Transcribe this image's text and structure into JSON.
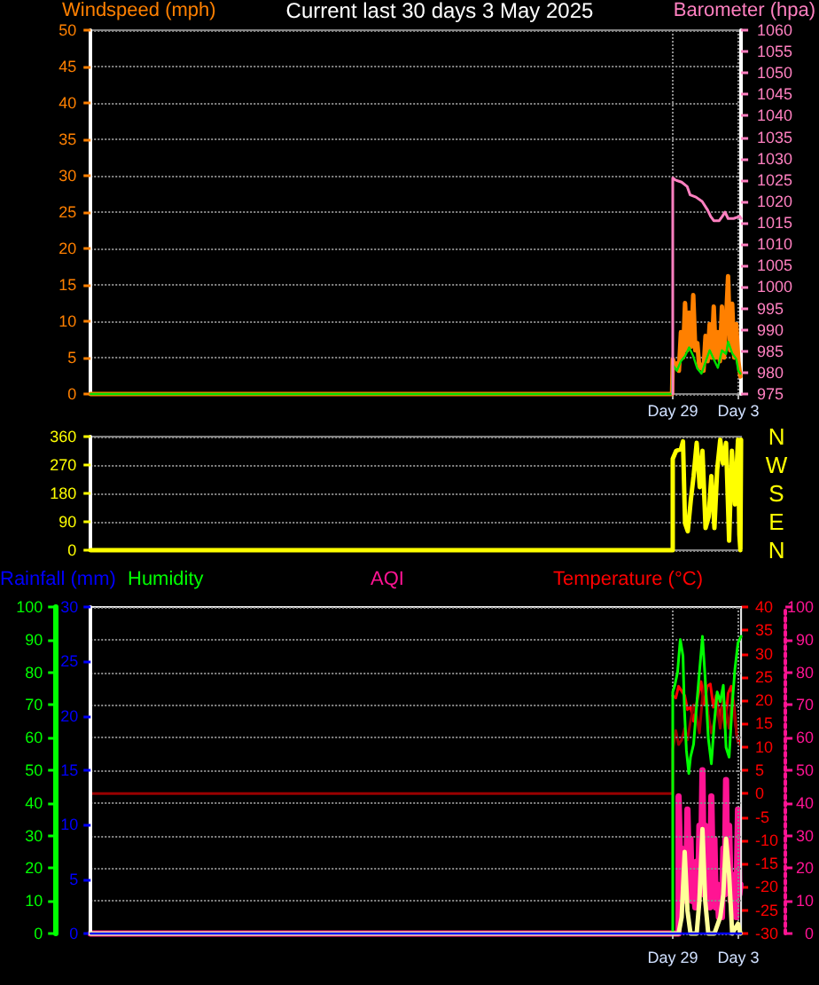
{
  "chart_data": [
    {
      "type": "line",
      "title": "Current last 30 days 3 May 2025",
      "ylabel": "Windspeed (mph)",
      "y2label": "Barometer (hpa)",
      "xlim": [
        "2025-03-24T12:00",
        "2025-05-03T04:00"
      ],
      "xticks": [
        {
          "value": "2025-04-29T00:00",
          "label": "Day 29"
        },
        {
          "value": "2025-05-03T00:00",
          "label": "Day 3"
        }
      ],
      "ylim": [
        0,
        50
      ],
      "yticks": [
        0,
        5,
        10,
        15,
        20,
        25,
        30,
        35,
        40,
        45,
        50
      ],
      "y2lim": [
        975,
        1060
      ],
      "y2ticks": [
        975,
        980,
        985,
        990,
        995,
        1000,
        1005,
        1010,
        1015,
        1020,
        1025,
        1030,
        1035,
        1040,
        1045,
        1050,
        1055,
        1060
      ],
      "grid": true,
      "marker": "none",
      "series": [
        {
          "color": "#ff8000",
          "x": [
            "2025-03-24T12:00",
            "2025-04-28T23:00",
            "2025-04-29T00:00",
            "2025-04-29T03:00",
            "2025-04-29T06:00",
            "2025-04-29T09:00",
            "2025-04-29T12:00",
            "2025-04-29T15:00",
            "2025-04-29T18:00",
            "2025-04-29T21:00",
            "2025-04-30T00:00",
            "2025-04-30T03:00",
            "2025-04-30T06:00",
            "2025-04-30T09:00",
            "2025-04-30T12:00",
            "2025-04-30T15:00",
            "2025-04-30T18:00",
            "2025-04-30T21:00",
            "2025-05-01T00:00",
            "2025-05-01T03:00",
            "2025-05-01T06:00",
            "2025-05-01T09:00",
            "2025-05-01T12:00",
            "2025-05-01T15:00",
            "2025-05-01T18:00",
            "2025-05-01T21:00",
            "2025-05-02T00:00",
            "2025-05-02T03:00",
            "2025-05-02T06:00",
            "2025-05-02T09:00",
            "2025-05-02T12:00",
            "2025-05-02T15:00",
            "2025-05-02T18:00",
            "2025-05-02T21:00",
            "2025-05-03T00:00",
            "2025-05-03T03:00"
          ],
          "values": [
            0,
            0,
            4.8,
            3.8,
            4.2,
            3.2,
            8.5,
            5,
            12.5,
            6,
            11.2,
            6.5,
            13.6,
            6,
            7,
            3.5,
            4,
            3.2,
            8,
            4.5,
            9.6,
            5,
            12,
            5,
            8.5,
            4.5,
            12,
            5,
            10,
            16.2,
            6,
            12.4,
            5,
            9.6,
            4.5,
            2.4
          ]
        },
        {
          "color": "#00e000",
          "x": [
            "2025-03-24T12:00",
            "2025-04-28T23:00",
            "2025-04-29T00:00",
            "2025-04-29T06:00",
            "2025-04-29T12:00",
            "2025-04-29T18:00",
            "2025-04-30T00:00",
            "2025-04-30T06:00",
            "2025-04-30T12:00",
            "2025-04-30T18:00",
            "2025-05-01T00:00",
            "2025-05-01T06:00",
            "2025-05-01T12:00",
            "2025-05-01T18:00",
            "2025-05-02T00:00",
            "2025-05-02T06:00",
            "2025-05-02T09:00",
            "2025-05-02T15:00",
            "2025-05-02T21:00",
            "2025-05-03T00:00",
            "2025-05-03T03:00"
          ],
          "values": [
            0,
            0,
            4,
            3.2,
            4.5,
            5.2,
            6.4,
            5.2,
            3.5,
            2.8,
            4.4,
            6,
            4.8,
            3.6,
            6,
            5.5,
            7.2,
            5.6,
            4.8,
            3.2,
            2.8
          ]
        },
        {
          "color": "#ff80c0",
          "axis": "y2",
          "x": [
            "2025-04-29T00:00",
            "2025-04-29T00:00",
            "2025-04-29T04:00",
            "2025-04-29T13:00",
            "2025-04-29T21:00",
            "2025-04-30T01:30",
            "2025-04-30T10:00",
            "2025-04-30T19:00",
            "2025-05-01T03:00",
            "2025-05-01T07:30",
            "2025-05-01T12:00",
            "2025-05-01T20:00",
            "2025-05-02T00:30",
            "2025-05-02T04:30",
            "2025-05-02T09:00",
            "2025-05-02T17:00",
            "2025-05-03T02:00",
            "2025-05-03T04:00"
          ],
          "values": [
            975,
            1025.5,
            1025,
            1024.5,
            1023.5,
            1021.5,
            1021,
            1020,
            1018,
            1016.5,
            1015.5,
            1015.5,
            1016.5,
            1017.5,
            1016,
            1016,
            1016.5,
            1016
          ]
        }
      ]
    },
    {
      "type": "line",
      "xlim": [
        "2025-03-24T12:00",
        "2025-05-03T04:00"
      ],
      "ylim": [
        0,
        360
      ],
      "yticks": [
        0,
        90,
        180,
        270,
        360
      ],
      "annotations": [
        "N",
        "W",
        "S",
        "E",
        "N"
      ],
      "grid": "y",
      "tick_labels": "y",
      "marker": "none",
      "series": [
        {
          "color": "#ffff00",
          "x": [
            "2025-03-24T12:00",
            "2025-04-29T00:00",
            "2025-04-29T00:00",
            "2025-04-29T05:00",
            "2025-04-29T12:00",
            "2025-04-29T15:00",
            "2025-04-29T18:00",
            "2025-04-29T22:00",
            "2025-04-30T02:30",
            "2025-04-30T06:30",
            "2025-04-30T11:00",
            "2025-04-30T15:30",
            "2025-04-30T19:30",
            "2025-05-01T00:00",
            "2025-05-01T04:30",
            "2025-05-01T08:30",
            "2025-05-01T13:00",
            "2025-05-01T17:00",
            "2025-05-01T21:30",
            "2025-05-02T01:30",
            "2025-05-02T06:00",
            "2025-05-02T10:30",
            "2025-05-02T14:30",
            "2025-05-02T19:00",
            "2025-05-02T23:30",
            "2025-05-03T01:30",
            "2025-05-03T03:00",
            "2025-05-03T04:00"
          ],
          "values": [
            0,
            0,
            290,
            315,
            320,
            345,
            85,
            60,
            160,
            235,
            340,
            200,
            315,
            70,
            105,
            235,
            70,
            255,
            350,
            275,
            340,
            30,
            315,
            145,
            350,
            50,
            0,
            350
          ]
        }
      ]
    },
    {
      "type": "line",
      "xlim": [
        "2025-03-24T12:00",
        "2025-05-03T04:00"
      ],
      "xticks": [
        {
          "value": "2025-04-29T00:00",
          "label": "Day 29"
        },
        {
          "value": "2025-05-03T00:00",
          "label": "Day 3"
        }
      ],
      "ylim": [
        0,
        100
      ],
      "yticks": [
        0,
        10,
        20,
        30,
        40,
        50,
        60,
        70,
        80,
        90,
        100
      ],
      "y2lim": [
        0,
        30
      ],
      "y2ticks": [
        0,
        5,
        10,
        15,
        20,
        25,
        30
      ],
      "grid": true,
      "marker": "none",
      "legend": "top left",
      "series": [
        {
          "name": "Humidity",
          "color": "#00ff00",
          "x": [
            "2025-04-29T00:00",
            "2025-04-29T00:00",
            "2025-04-29T03:00",
            "2025-04-29T07:00",
            "2025-04-29T11:00",
            "2025-04-29T15:00",
            "2025-04-29T17:00",
            "2025-04-29T20:00",
            "2025-04-29T23:30",
            "2025-04-30T02:00",
            "2025-04-30T06:30",
            "2025-04-30T11:00",
            "2025-04-30T15:00",
            "2025-04-30T19:30",
            "2025-04-30T23:30",
            "2025-05-01T04:00",
            "2025-05-01T08:30",
            "2025-05-01T13:00",
            "2025-05-01T17:00",
            "2025-05-01T21:30",
            "2025-05-02T02:00",
            "2025-05-02T06:00",
            "2025-05-02T10:30",
            "2025-05-02T15:00",
            "2025-05-02T19:00",
            "2025-05-02T23:30",
            "2025-05-03T04:00"
          ],
          "values": [
            0,
            74,
            76,
            80,
            90,
            85,
            69,
            56,
            49,
            54,
            58,
            70,
            80,
            91,
            78,
            60,
            52,
            65,
            74,
            71,
            76,
            57,
            54,
            70,
            81,
            89,
            91
          ]
        },
        {
          "color": "#ffff99",
          "x": [
            "2025-03-24T12:00",
            "2025-04-29T08:30",
            "2025-04-29T13:00",
            "2025-04-29T17:30",
            "2025-04-29T21:30",
            "2025-04-30T02:00",
            "2025-04-30T11:00",
            "2025-04-30T15:00",
            "2025-04-30T19:30",
            "2025-04-30T23:30",
            "2025-05-01T04:00",
            "2025-05-01T13:00",
            "2025-05-01T21:30",
            "2025-05-02T02:00",
            "2025-05-02T06:00",
            "2025-05-02T10:30",
            "2025-05-02T15:00",
            "2025-05-02T23:30",
            "2025-05-03T03:00"
          ],
          "values": [
            0,
            0,
            5,
            25,
            7,
            0,
            0,
            10,
            32,
            10,
            0,
            0,
            5,
            12,
            29,
            18,
            0,
            3,
            0
          ]
        },
        {
          "name": "Rainfall (mm)",
          "color": "#0000ff",
          "axis": "y2",
          "x": [
            "2025-03-24T12:00",
            "2025-03-26T12:00",
            "2025-03-28T12:00",
            "2025-03-30T12:00",
            "2025-04-01T12:00",
            "2025-04-03T12:00",
            "2025-04-05T12:00",
            "2025-04-07T12:00",
            "2025-04-09T12:00",
            "2025-04-11T12:00",
            "2025-04-13T12:00",
            "2025-04-15T12:00",
            "2025-04-17T12:00",
            "2025-04-19T12:00",
            "2025-04-21T12:00",
            "2025-04-23T12:00",
            "2025-04-25T12:00",
            "2025-04-27T12:00",
            "2025-04-29T12:00",
            "2025-05-01T12:00",
            "2025-05-03T04:00"
          ],
          "values": [
            0,
            0,
            0,
            0,
            0,
            0,
            0,
            0,
            0,
            0,
            0,
            0,
            0,
            0,
            0,
            0,
            0,
            0,
            0,
            0,
            0
          ]
        }
      ]
    },
    {
      "type": "line",
      "xlim": [
        "2025-03-24T12:00",
        "2025-05-03T04:00"
      ],
      "ylim": [
        -30,
        40
      ],
      "yticks": [
        -30,
        -25,
        -20,
        -15,
        -10,
        -5,
        0,
        5,
        10,
        15,
        20,
        25,
        30,
        35,
        40
      ],
      "y2lim": [
        0,
        100
      ],
      "y2ticks": [
        0,
        10,
        20,
        30,
        40,
        50,
        60,
        70,
        80,
        90,
        100
      ],
      "tick_labels": "y",
      "marker": "none",
      "legend": "top",
      "series": [
        {
          "name": "AQI",
          "color": "#ff1493",
          "axis": "y2",
          "x": [
            "2025-03-24T12:00",
            "2025-04-29T08:30",
            "2025-04-29T08:30",
            "2025-04-29T11:00",
            "2025-04-29T13:00",
            "2025-04-29T15:00",
            "2025-04-29T17:30",
            "2025-04-29T19:30",
            "2025-04-29T21:30",
            "2025-04-30T00:00",
            "2025-04-30T02:00",
            "2025-04-30T04:00",
            "2025-04-30T06:30",
            "2025-04-30T09:00",
            "2025-04-30T11:00",
            "2025-04-30T13:00",
            "2025-04-30T15:00",
            "2025-04-30T17:00",
            "2025-04-30T19:30",
            "2025-04-30T21:30",
            "2025-04-30T23:30",
            "2025-05-01T02:00",
            "2025-05-01T04:00",
            "2025-05-01T06:30",
            "2025-05-01T08:30",
            "2025-05-01T11:00",
            "2025-05-01T13:00",
            "2025-05-01T15:00",
            "2025-05-01T17:00",
            "2025-05-01T19:30",
            "2025-05-01T21:30",
            "2025-05-02T00:00",
            "2025-05-02T02:00",
            "2025-05-02T04:00",
            "2025-05-02T06:00",
            "2025-05-02T08:00",
            "2025-05-02T10:30",
            "2025-05-02T13:00",
            "2025-05-02T15:00",
            "2025-05-02T17:00",
            "2025-05-02T19:00",
            "2025-05-02T21:00",
            "2025-05-02T23:30",
            "2025-05-03T01:30",
            "2025-05-03T03:00"
          ],
          "values": [
            0,
            0,
            42,
            20,
            26,
            12,
            18,
            10,
            38,
            15,
            29,
            10,
            15,
            8,
            22,
            10,
            33,
            15,
            50,
            12,
            33,
            10,
            17,
            8,
            42,
            12,
            29,
            8,
            15,
            5,
            11,
            5,
            26,
            12,
            47,
            15,
            33,
            10,
            18,
            8,
            11,
            5,
            38,
            12,
            15
          ]
        },
        {
          "name": "Temperature (°C)",
          "color": "#ff0000",
          "x": [
            "2025-04-29T00:00",
            "2025-04-29T04:30",
            "2025-04-29T08:30",
            "2025-04-29T17:30",
            "2025-04-29T21:30",
            "2025-04-30T02:00",
            "2025-04-30T06:30",
            "2025-04-30T12:30",
            "2025-04-30T17:30",
            "2025-04-30T22:00",
            "2025-05-01T02:30",
            "2025-05-01T07:00",
            "2025-05-01T11:30",
            "2025-05-01T15:30",
            "2025-05-01T20:00",
            "2025-05-02T00:30",
            "2025-05-02T04:30",
            "2025-05-02T09:00",
            "2025-05-02T13:30",
            "2025-05-02T17:30",
            "2025-05-02T22:00",
            "2025-05-03T02:30"
          ],
          "values": [
            21,
            20.5,
            23,
            21,
            18,
            18.5,
            15.5,
            20.5,
            24,
            19,
            23,
            23.5,
            18.5,
            21,
            16.5,
            19,
            14,
            21.5,
            23,
            19,
            12,
            11
          ]
        },
        {
          "color": "#990000",
          "x": [
            "2025-03-24T12:00",
            "2025-04-29T00:00",
            "2025-04-29T00:00",
            "2025-04-29T04:30",
            "2025-04-29T08:30",
            "2025-04-29T13:00",
            "2025-04-29T17:30",
            "2025-04-29T21:30",
            "2025-04-30T02:00",
            "2025-04-30T06:30",
            "2025-04-30T11:00",
            "2025-04-30T15:00",
            "2025-04-30T19:30",
            "2025-04-30T23:30",
            "2025-05-01T04:00",
            "2025-05-01T08:30",
            "2025-05-01T13:00",
            "2025-05-01T17:00",
            "2025-05-01T21:30",
            "2025-05-02T02:00",
            "2025-05-02T06:00",
            "2025-05-02T10:30",
            "2025-05-02T15:00",
            "2025-05-02T19:00",
            "2025-05-02T23:30",
            "2025-05-03T03:00"
          ],
          "values": [
            0,
            0,
            9.5,
            13.5,
            10.5,
            11.5,
            14,
            11.5,
            15.5,
            19,
            16.5,
            13,
            20.5,
            24,
            17,
            13,
            15.5,
            18.5,
            14,
            20.5,
            18,
            14,
            21.5,
            15.5,
            11,
            10.5
          ]
        }
      ]
    }
  ]
}
